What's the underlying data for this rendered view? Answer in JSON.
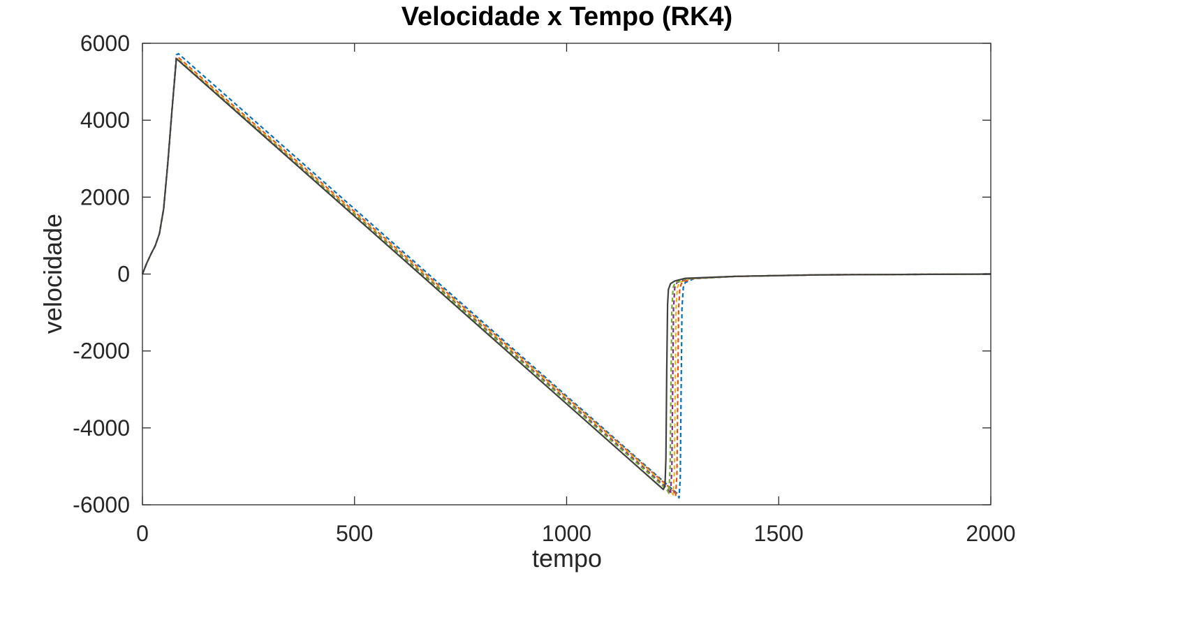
{
  "chart_data": {
    "type": "line",
    "title": "Velocidade x Tempo (RK4)",
    "xlabel": "tempo",
    "ylabel": "velocidade",
    "xlim": [
      0,
      2000
    ],
    "ylim": [
      -6000,
      6000
    ],
    "xticks": [
      0,
      500,
      1000,
      1500,
      2000
    ],
    "yticks": [
      -6000,
      -4000,
      -2000,
      0,
      2000,
      4000,
      6000
    ],
    "xtick_labels": [
      "0",
      "500",
      "1000",
      "1500",
      "2000"
    ],
    "ytick_labels": [
      "-6000",
      "-4000",
      "-2000",
      "0",
      "2000",
      "4000",
      "6000"
    ],
    "grid": false,
    "series": [
      {
        "color": "#0072BD",
        "style": "dashed",
        "x": [
          0,
          10,
          20,
          30,
          40,
          50,
          60,
          70,
          80,
          85,
          1260,
          1265,
          1268,
          1270,
          1272,
          1275,
          1280,
          1300,
          1400,
          1600,
          2000
        ],
        "y": [
          0,
          280,
          520,
          730,
          1050,
          1700,
          2900,
          4300,
          5700,
          5730,
          -5700,
          -5820,
          -5300,
          -3000,
          -900,
          -350,
          -220,
          -120,
          -60,
          -20,
          0
        ]
      },
      {
        "color": "#D95319",
        "style": "dashed",
        "x": [
          0,
          10,
          20,
          30,
          40,
          50,
          60,
          70,
          80,
          83,
          1252,
          1257,
          1260,
          1262,
          1264,
          1267,
          1272,
          1295,
          1400,
          1600,
          2000
        ],
        "y": [
          0,
          280,
          520,
          730,
          1050,
          1700,
          2900,
          4300,
          5620,
          5650,
          -5640,
          -5770,
          -5200,
          -3000,
          -900,
          -350,
          -220,
          -120,
          -60,
          -20,
          0
        ]
      },
      {
        "color": "#EDB120",
        "style": "dashed",
        "x": [
          0,
          10,
          20,
          30,
          40,
          50,
          60,
          70,
          80,
          82,
          1246,
          1251,
          1254,
          1256,
          1258,
          1261,
          1266,
          1290,
          1400,
          1600,
          2000
        ],
        "y": [
          0,
          280,
          520,
          730,
          1050,
          1700,
          2900,
          4300,
          5600,
          5620,
          -5610,
          -5740,
          -5150,
          -3000,
          -900,
          -350,
          -220,
          -120,
          -60,
          -20,
          0
        ]
      },
      {
        "color": "#7E2F8E",
        "style": "dashed",
        "x": [
          0,
          10,
          20,
          30,
          40,
          50,
          60,
          70,
          80,
          81,
          1240,
          1245,
          1248,
          1250,
          1252,
          1255,
          1260,
          1285,
          1400,
          1600,
          2000
        ],
        "y": [
          0,
          280,
          520,
          730,
          1050,
          1700,
          2900,
          4300,
          5590,
          5600,
          -5600,
          -5720,
          -5100,
          -3000,
          -900,
          -350,
          -220,
          -120,
          -60,
          -20,
          0
        ]
      },
      {
        "color": "#77AC30",
        "style": "dashed",
        "x": [
          0,
          10,
          20,
          30,
          40,
          50,
          60,
          70,
          80,
          81,
          1236,
          1241,
          1244,
          1246,
          1248,
          1251,
          1256,
          1282,
          1400,
          1600,
          2000
        ],
        "y": [
          0,
          280,
          520,
          730,
          1050,
          1700,
          2900,
          4300,
          5590,
          5600,
          -5600,
          -5700,
          -5050,
          -3000,
          -900,
          -350,
          -220,
          -120,
          -60,
          -20,
          0
        ]
      },
      {
        "color": "#404040",
        "style": "solid",
        "x": [
          0,
          10,
          20,
          30,
          40,
          50,
          60,
          70,
          80,
          1228,
          1232,
          1234,
          1236,
          1238,
          1240,
          1245,
          1255,
          1280,
          1400,
          1600,
          2000
        ],
        "y": [
          0,
          280,
          520,
          730,
          1050,
          1700,
          2900,
          4300,
          5600,
          -5600,
          -5500,
          -4800,
          -2500,
          -800,
          -400,
          -250,
          -180,
          -110,
          -60,
          -20,
          0
        ]
      }
    ]
  }
}
